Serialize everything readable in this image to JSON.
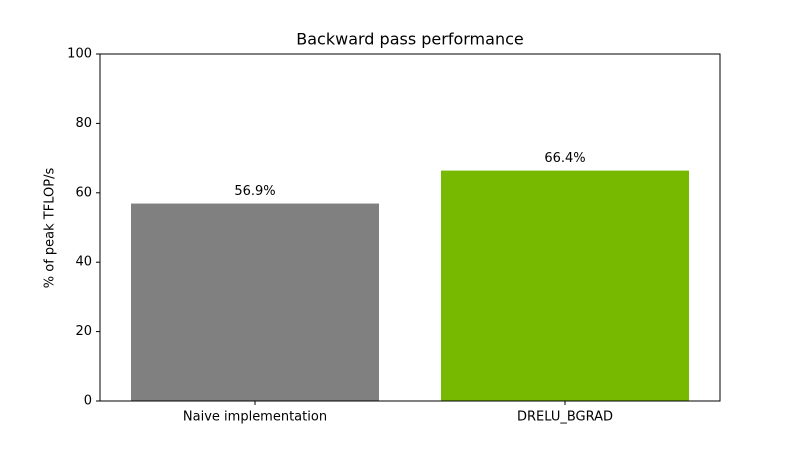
{
  "chart_data": {
    "type": "bar",
    "title": "Backward pass performance",
    "ylabel": "% of peak TFLOP/s",
    "categories": [
      "Naive implementation",
      "DRELU_BGRAD"
    ],
    "values": [
      56.9,
      66.4
    ],
    "value_labels": [
      "56.9%",
      "66.4%"
    ],
    "colors": [
      "#808080",
      "#76b900"
    ],
    "ylim": [
      0,
      100
    ],
    "yticks": [
      0,
      20,
      40,
      60,
      80,
      100
    ]
  }
}
